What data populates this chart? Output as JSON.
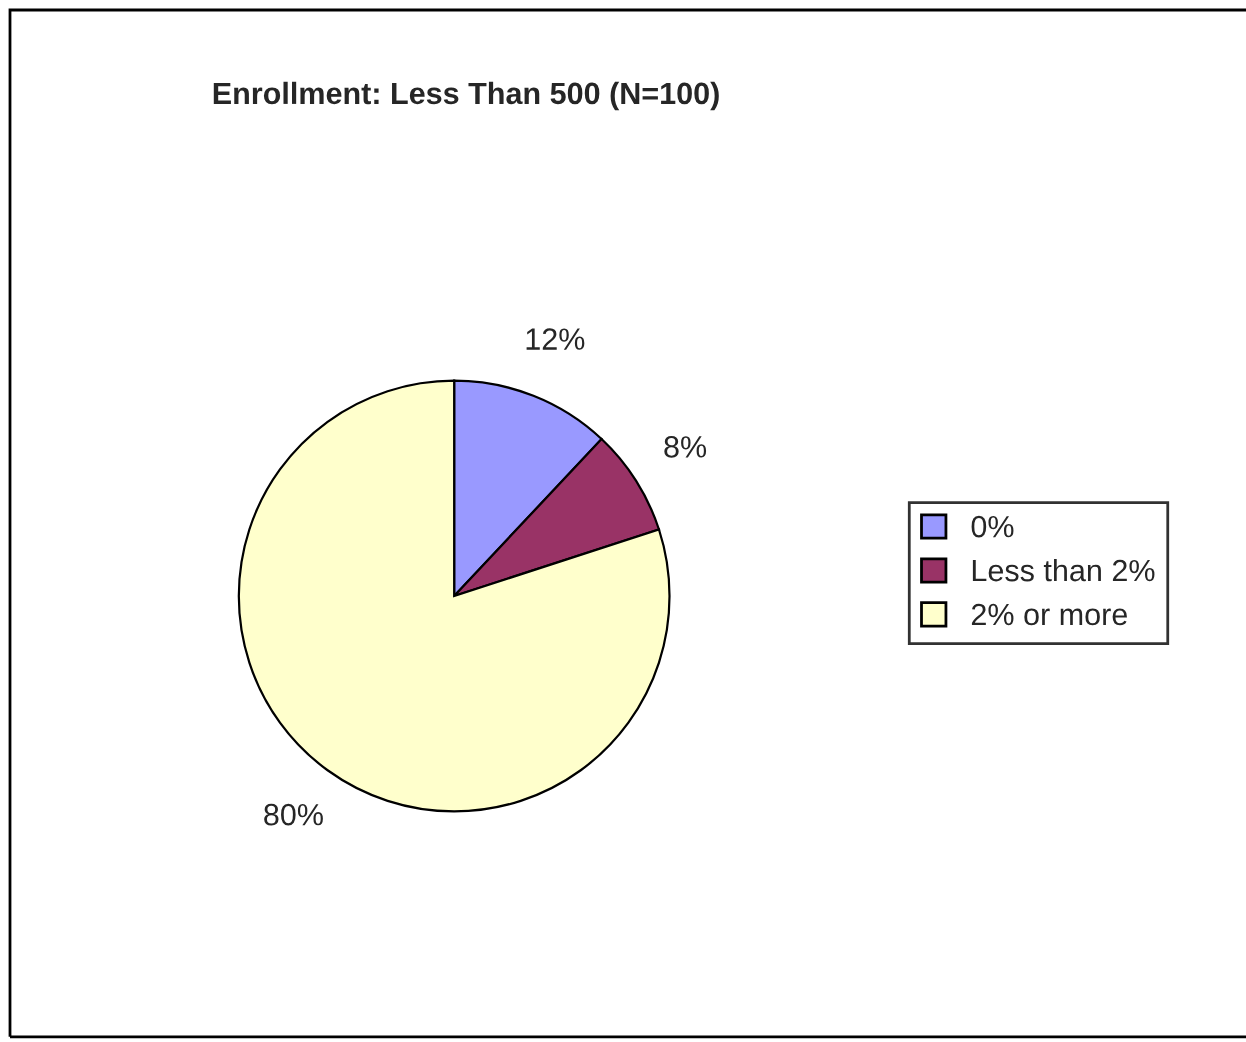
{
  "chart_data": {
    "type": "pie",
    "title": "Enrollment: Less Than 500 (N=100)",
    "categories": [
      "0%",
      "Less than 2%",
      "2% or more"
    ],
    "values": [
      12,
      8,
      80
    ],
    "value_labels": [
      "12%",
      "8%",
      "80%"
    ],
    "colors": [
      "#9999ff",
      "#993366",
      "#ffffcc"
    ],
    "legend": "right"
  }
}
